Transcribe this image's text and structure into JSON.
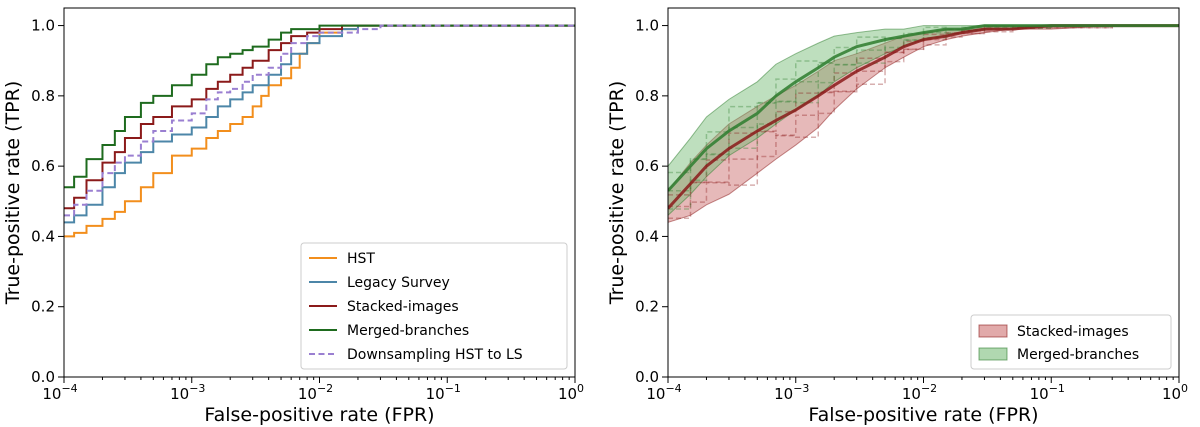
{
  "chart_data": [
    {
      "type": "line",
      "x_scale": "log",
      "xlim": [
        0.0001,
        1
      ],
      "ylim": [
        0,
        1.05
      ],
      "xlabel": "False-positive rate (FPR)",
      "ylabel": "True-positive rate (TPR)",
      "xticks": [
        0.0001,
        0.001,
        0.01,
        0.1,
        1
      ],
      "xtick_labels": [
        {
          "base": "10",
          "exp": "−4"
        },
        {
          "base": "10",
          "exp": "−3"
        },
        {
          "base": "10",
          "exp": "−2"
        },
        {
          "base": "10",
          "exp": "−1"
        },
        {
          "base": "10",
          "exp": "0"
        }
      ],
      "yticks": [
        0.0,
        0.2,
        0.4,
        0.6,
        0.8,
        1.0
      ],
      "ytick_labels": [
        "0.0",
        "0.2",
        "0.4",
        "0.6",
        "0.8",
        "1.0"
      ],
      "legend_position": "lower-right",
      "series": [
        {
          "name": "HST",
          "color": "#f28e1c",
          "dash": "solid",
          "x": [
            0.0001,
            0.00012,
            0.00015,
            0.0002,
            0.00025,
            0.0003,
            0.0004,
            0.0005,
            0.0007,
            0.001,
            0.0013,
            0.0016,
            0.002,
            0.0025,
            0.003,
            0.0035,
            0.004,
            0.005,
            0.006,
            0.007,
            0.008,
            0.01,
            0.015,
            0.02,
            0.03,
            0.1,
            1
          ],
          "y": [
            0.4,
            0.41,
            0.43,
            0.45,
            0.47,
            0.5,
            0.54,
            0.58,
            0.63,
            0.65,
            0.68,
            0.7,
            0.72,
            0.74,
            0.77,
            0.8,
            0.83,
            0.85,
            0.88,
            0.92,
            0.95,
            0.98,
            0.99,
            1.0,
            1.0,
            1.0,
            1.0
          ]
        },
        {
          "name": "Legacy Survey",
          "color": "#4c86a8",
          "dash": "solid",
          "x": [
            0.0001,
            0.00012,
            0.00015,
            0.0002,
            0.00025,
            0.0003,
            0.0004,
            0.0005,
            0.0007,
            0.001,
            0.0013,
            0.0016,
            0.002,
            0.0025,
            0.003,
            0.004,
            0.005,
            0.006,
            0.008,
            0.01,
            0.015,
            0.02,
            0.03,
            0.1,
            1
          ],
          "y": [
            0.44,
            0.46,
            0.49,
            0.54,
            0.58,
            0.61,
            0.64,
            0.67,
            0.69,
            0.71,
            0.74,
            0.77,
            0.79,
            0.81,
            0.83,
            0.86,
            0.89,
            0.92,
            0.95,
            0.97,
            0.99,
            1.0,
            1.0,
            1.0,
            1.0
          ]
        },
        {
          "name": "Stacked-images",
          "color": "#8b1a1a",
          "dash": "solid",
          "x": [
            0.0001,
            0.00012,
            0.00015,
            0.0002,
            0.00025,
            0.0003,
            0.0004,
            0.0005,
            0.0007,
            0.001,
            0.0013,
            0.0016,
            0.002,
            0.0025,
            0.003,
            0.004,
            0.005,
            0.006,
            0.008,
            0.01,
            0.015,
            0.02,
            0.03,
            0.1,
            1
          ],
          "y": [
            0.48,
            0.51,
            0.56,
            0.61,
            0.64,
            0.68,
            0.72,
            0.74,
            0.77,
            0.79,
            0.82,
            0.84,
            0.86,
            0.88,
            0.9,
            0.93,
            0.95,
            0.97,
            0.98,
            0.99,
            1.0,
            1.0,
            1.0,
            1.0,
            1.0
          ]
        },
        {
          "name": "Merged-branches",
          "color": "#1e6b1e",
          "dash": "solid",
          "x": [
            0.0001,
            0.00012,
            0.00015,
            0.0002,
            0.00025,
            0.0003,
            0.0004,
            0.0005,
            0.0007,
            0.001,
            0.0013,
            0.0016,
            0.002,
            0.0025,
            0.003,
            0.004,
            0.005,
            0.006,
            0.008,
            0.01,
            0.015,
            0.02,
            0.03,
            0.1,
            1
          ],
          "y": [
            0.54,
            0.57,
            0.62,
            0.66,
            0.7,
            0.74,
            0.78,
            0.8,
            0.83,
            0.86,
            0.89,
            0.91,
            0.92,
            0.93,
            0.94,
            0.96,
            0.98,
            0.99,
            0.99,
            1.0,
            1.0,
            1.0,
            1.0,
            1.0,
            1.0
          ]
        },
        {
          "name": "Downsampling HST to LS",
          "color": "#9a7fd1",
          "dash": "dashed",
          "x": [
            0.0001,
            0.00012,
            0.00015,
            0.0002,
            0.00025,
            0.0003,
            0.0004,
            0.0005,
            0.0007,
            0.001,
            0.0013,
            0.0016,
            0.002,
            0.0025,
            0.003,
            0.004,
            0.005,
            0.006,
            0.008,
            0.01,
            0.015,
            0.02,
            0.03,
            0.1,
            1
          ],
          "y": [
            0.46,
            0.49,
            0.53,
            0.58,
            0.61,
            0.63,
            0.67,
            0.7,
            0.73,
            0.75,
            0.79,
            0.81,
            0.82,
            0.84,
            0.86,
            0.88,
            0.92,
            0.95,
            0.97,
            0.98,
            0.98,
            0.99,
            1.0,
            1.0,
            1.0
          ]
        }
      ]
    },
    {
      "type": "area",
      "x_scale": "log",
      "xlim": [
        0.0001,
        1
      ],
      "ylim": [
        0,
        1.05
      ],
      "xlabel": "False-positive rate (FPR)",
      "ylabel": "True-positive rate (TPR)",
      "xticks": [
        0.0001,
        0.001,
        0.01,
        0.1,
        1
      ],
      "xtick_labels": [
        {
          "base": "10",
          "exp": "−4"
        },
        {
          "base": "10",
          "exp": "−3"
        },
        {
          "base": "10",
          "exp": "−2"
        },
        {
          "base": "10",
          "exp": "−1"
        },
        {
          "base": "10",
          "exp": "0"
        }
      ],
      "yticks": [
        0.0,
        0.2,
        0.4,
        0.6,
        0.8,
        1.0
      ],
      "ytick_labels": [
        "0.0",
        "0.2",
        "0.4",
        "0.6",
        "0.8",
        "1.0"
      ],
      "legend_position": "lower-right",
      "x": [
        0.0001,
        0.00015,
        0.0002,
        0.0003,
        0.0005,
        0.0007,
        0.001,
        0.0015,
        0.002,
        0.003,
        0.005,
        0.007,
        0.01,
        0.015,
        0.02,
        0.03,
        0.05,
        0.1,
        0.3,
        1
      ],
      "series": [
        {
          "name": "Stacked-images",
          "color": "#8b1a1a",
          "fill": "#c86464",
          "mean": [
            0.48,
            0.55,
            0.6,
            0.65,
            0.7,
            0.73,
            0.76,
            0.8,
            0.83,
            0.87,
            0.91,
            0.94,
            0.96,
            0.97,
            0.98,
            0.99,
            0.99,
            1.0,
            1.0,
            1.0
          ],
          "lower": [
            0.44,
            0.46,
            0.49,
            0.52,
            0.58,
            0.62,
            0.66,
            0.71,
            0.76,
            0.82,
            0.88,
            0.91,
            0.94,
            0.96,
            0.97,
            0.98,
            0.99,
            0.99,
            1.0,
            1.0
          ],
          "upper": [
            0.53,
            0.61,
            0.66,
            0.72,
            0.77,
            0.8,
            0.83,
            0.87,
            0.9,
            0.92,
            0.95,
            0.97,
            0.98,
            0.99,
            0.99,
            1.0,
            1.0,
            1.0,
            1.0,
            1.0
          ]
        },
        {
          "name": "Merged-branches",
          "color": "#2e7d2e",
          "fill": "#6fb86f",
          "mean": [
            0.53,
            0.6,
            0.65,
            0.7,
            0.75,
            0.8,
            0.84,
            0.88,
            0.91,
            0.94,
            0.96,
            0.97,
            0.98,
            0.99,
            0.99,
            1.0,
            1.0,
            1.0,
            1.0,
            1.0
          ],
          "lower": [
            0.46,
            0.52,
            0.57,
            0.63,
            0.68,
            0.72,
            0.76,
            0.8,
            0.84,
            0.88,
            0.92,
            0.94,
            0.96,
            0.97,
            0.98,
            0.99,
            0.99,
            1.0,
            1.0,
            1.0
          ],
          "upper": [
            0.6,
            0.68,
            0.74,
            0.79,
            0.84,
            0.89,
            0.92,
            0.95,
            0.97,
            0.98,
            0.99,
            0.99,
            1.0,
            1.0,
            1.0,
            1.0,
            1.0,
            1.0,
            1.0,
            1.0
          ]
        }
      ]
    }
  ]
}
